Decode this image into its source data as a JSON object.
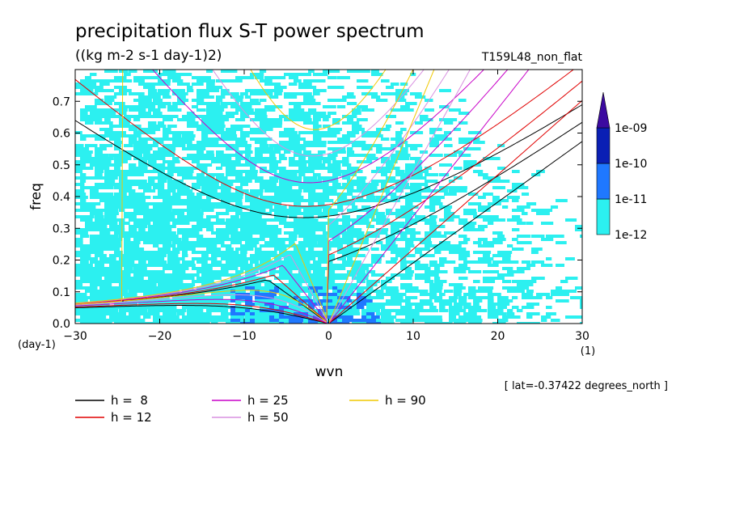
{
  "chart_data": {
    "type": "heatmap",
    "title": "precipitation flux S-T power spectrum",
    "subtitle": "((kg m-2 s-1 day-1)2)",
    "run_label": "T159L48_non_flat",
    "xlabel": "wvn",
    "xunit": "(1)",
    "ylabel": "freq",
    "yunit": "(day-1)",
    "xlim": [
      -30,
      30
    ],
    "ylim": [
      0,
      0.8
    ],
    "xticks": [
      "-30",
      "-20",
      "-10",
      "0",
      "10",
      "20",
      "30"
    ],
    "yticks": [
      "0.0",
      "0.1",
      "0.2",
      "0.3",
      "0.4",
      "0.5",
      "0.6",
      "0.7"
    ],
    "note": "[ lat=-0.37422 degrees_north ]",
    "colorbar": {
      "levels": [
        "1e-12",
        "1e-11",
        "1e-10",
        "1e-09"
      ],
      "colors": [
        "#2cf0f0",
        "#1f78ff",
        "#0a1fb4",
        "#3c0aa0"
      ]
    },
    "dispersion_curves": [
      {
        "h": "8",
        "label": "h =  8",
        "color": "#000000"
      },
      {
        "h": "12",
        "label": "h = 12",
        "color": "#e00000"
      },
      {
        "h": "25",
        "label": "h = 25",
        "color": "#c800c8"
      },
      {
        "h": "50",
        "label": "h = 50",
        "color": "#d890e0"
      },
      {
        "h": "90",
        "label": "h = 90",
        "color": "#f0c800"
      }
    ]
  }
}
